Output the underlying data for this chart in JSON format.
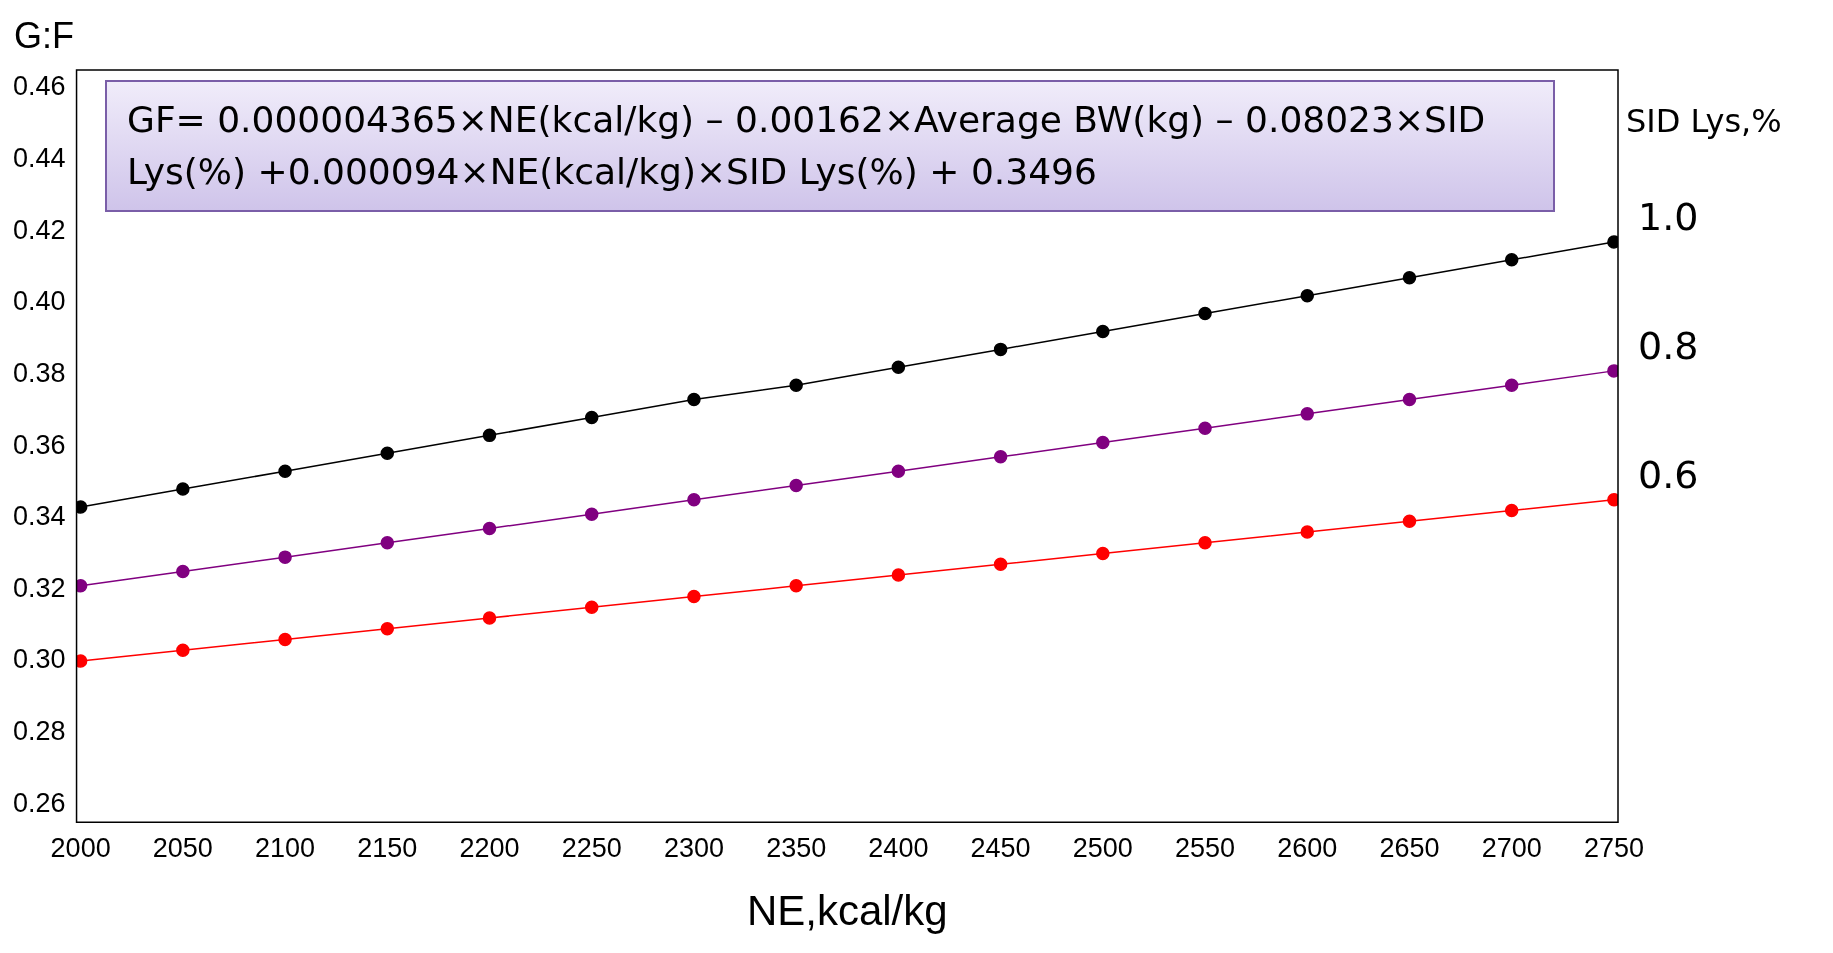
{
  "chart_data": {
    "type": "line",
    "xlabel": "NE,kcal/kg",
    "ylabel": "G:F",
    "legend_title": "SID Lys,%",
    "annotations": [
      "GF= 0.000004365×NE(kcal/kg) – 0.00162×Average BW(kg) – 0.08023×SID Lys(%) +0.000094×NE(kcal/kg)×SID Lys(%) + 0.3496"
    ],
    "x": [
      2000,
      2050,
      2100,
      2150,
      2200,
      2250,
      2300,
      2350,
      2400,
      2450,
      2500,
      2550,
      2600,
      2650,
      2700,
      2750
    ],
    "series": [
      {
        "name": "1.0",
        "color": "#000000",
        "values": [
          0.343,
          0.348,
          0.353,
          0.358,
          0.363,
          0.368,
          0.373,
          0.377,
          0.382,
          0.387,
          0.392,
          0.397,
          0.402,
          0.407,
          0.412,
          0.417
        ]
      },
      {
        "name": "0.8",
        "color": "#800080",
        "values": [
          0.321,
          0.325,
          0.329,
          0.333,
          0.337,
          0.341,
          0.345,
          0.349,
          0.353,
          0.357,
          0.361,
          0.365,
          0.369,
          0.373,
          0.377,
          0.381
        ]
      },
      {
        "name": "0.6",
        "color": "#ff0000",
        "values": [
          0.3,
          0.303,
          0.306,
          0.309,
          0.312,
          0.315,
          0.318,
          0.321,
          0.324,
          0.327,
          0.33,
          0.333,
          0.336,
          0.339,
          0.342,
          0.345
        ]
      }
    ],
    "xlim": [
      1998,
      2752
    ],
    "ylim": [
      0.255,
      0.465
    ],
    "xticks": [
      2000,
      2050,
      2100,
      2150,
      2200,
      2250,
      2300,
      2350,
      2400,
      2450,
      2500,
      2550,
      2600,
      2650,
      2700,
      2750
    ],
    "yticks": [
      {
        "value": 0.26,
        "label": "0.26"
      },
      {
        "value": 0.28,
        "label": "0.28"
      },
      {
        "value": 0.3,
        "label": "0.30"
      },
      {
        "value": 0.32,
        "label": "0.32"
      },
      {
        "value": 0.34,
        "label": "0.34"
      },
      {
        "value": 0.36,
        "label": "0.36"
      },
      {
        "value": 0.38,
        "label": "0.38"
      },
      {
        "value": 0.4,
        "label": "0.40"
      },
      {
        "value": 0.42,
        "label": "0.42"
      },
      {
        "value": 0.44,
        "label": "0.44"
      },
      {
        "value": 0.46,
        "label": "0.46"
      }
    ],
    "grid": false,
    "marker": "circle",
    "line_style": "solid"
  }
}
